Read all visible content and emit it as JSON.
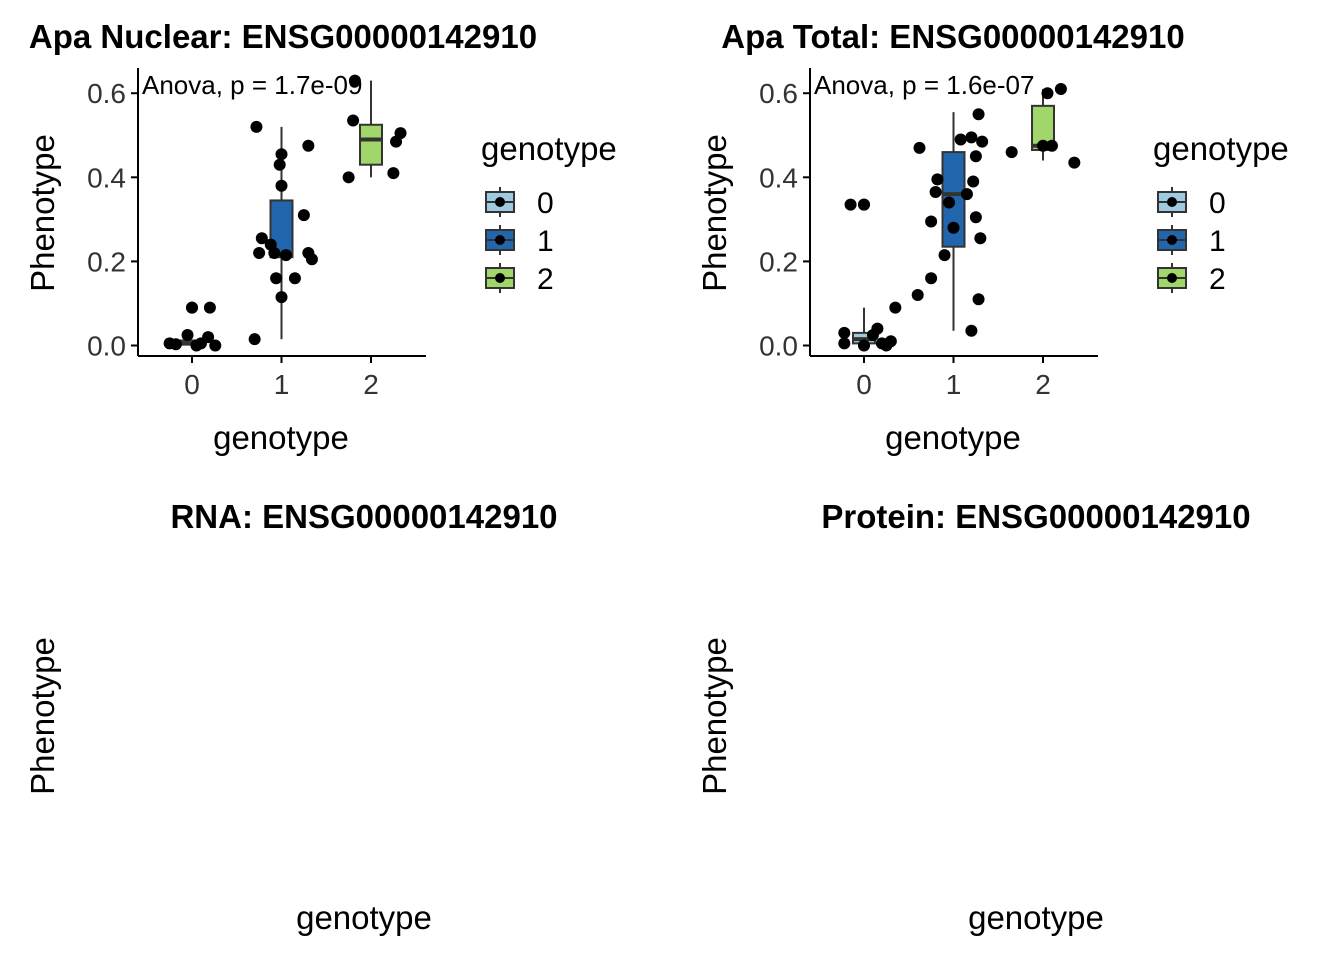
{
  "chart_data": [
    {
      "type": "box",
      "title": "Apa Nuclear: ENSG00000142910",
      "xlabel": "genotype",
      "ylabel": "Phenotype",
      "annotation": "Anova, p = 1.7e-09",
      "categories": [
        "0",
        "1",
        "2"
      ],
      "ylim": [
        -0.025,
        0.66
      ],
      "yticks": [
        0.0,
        0.2,
        0.4,
        0.6
      ],
      "ytick_labels": [
        "0.0",
        "0.2",
        "0.4",
        "0.6"
      ],
      "legend": {
        "title": "genotype",
        "entries": [
          "0",
          "1",
          "2"
        ],
        "position": "right"
      },
      "boxes": [
        {
          "category": "0",
          "q1": 0.002,
          "median": 0.005,
          "q3": 0.012,
          "whisker_low": 0.0,
          "whisker_high": 0.012,
          "outliers": [
            0.09
          ],
          "color": "#9ecae1"
        },
        {
          "category": "1",
          "q1": 0.21,
          "median": 0.215,
          "q3": 0.345,
          "whisker_low": 0.015,
          "whisker_high": 0.52,
          "outliers": [],
          "color": "#2166ac"
        },
        {
          "category": "2",
          "q1": 0.43,
          "median": 0.49,
          "q3": 0.525,
          "whisker_low": 0.4,
          "whisker_high": 0.63,
          "outliers": [],
          "color": "#a1d76a"
        }
      ],
      "points": [
        {
          "x": -0.25,
          "y": 0.005
        },
        {
          "x": -0.18,
          "y": 0.003
        },
        {
          "x": -0.05,
          "y": 0.025
        },
        {
          "x": 0.05,
          "y": 0.0
        },
        {
          "x": 0.2,
          "y": 0.09
        },
        {
          "x": 0.18,
          "y": 0.02
        },
        {
          "x": 0.26,
          "y": 0.0
        },
        {
          "x": 0.1,
          "y": 0.005
        },
        {
          "x": 0.0,
          "y": 0.09
        },
        {
          "x": -0.28,
          "y": 0.52
        },
        {
          "x": -0.3,
          "y": 0.015
        },
        {
          "x": -0.22,
          "y": 0.255
        },
        {
          "x": -0.25,
          "y": 0.22
        },
        {
          "x": -0.12,
          "y": 0.24
        },
        {
          "x": -0.08,
          "y": 0.22
        },
        {
          "x": -0.02,
          "y": 0.43
        },
        {
          "x": 0.0,
          "y": 0.455
        },
        {
          "x": 0.0,
          "y": 0.38
        },
        {
          "x": -0.06,
          "y": 0.16
        },
        {
          "x": 0.0,
          "y": 0.115
        },
        {
          "x": 0.15,
          "y": 0.16
        },
        {
          "x": 0.25,
          "y": 0.31
        },
        {
          "x": 0.3,
          "y": 0.475
        },
        {
          "x": 0.3,
          "y": 0.22
        },
        {
          "x": 0.34,
          "y": 0.205
        },
        {
          "x": 0.05,
          "y": 0.215
        },
        {
          "x": -0.25,
          "y": 0.4
        },
        {
          "x": -0.2,
          "y": 0.535
        },
        {
          "x": -0.18,
          "y": 0.63
        },
        {
          "x": 0.25,
          "y": 0.41
        },
        {
          "x": 0.28,
          "y": 0.485
        },
        {
          "x": 0.33,
          "y": 0.505
        }
      ]
    },
    {
      "type": "box",
      "title": "Apa Total: ENSG00000142910",
      "xlabel": "genotype",
      "ylabel": "Phenotype",
      "annotation": "Anova, p = 1.6e-07",
      "categories": [
        "0",
        "1",
        "2"
      ],
      "ylim": [
        -0.025,
        0.66
      ],
      "yticks": [
        0.0,
        0.2,
        0.4,
        0.6
      ],
      "ytick_labels": [
        "0.0",
        "0.2",
        "0.4",
        "0.6"
      ],
      "legend": {
        "title": "genotype",
        "entries": [
          "0",
          "1",
          "2"
        ],
        "position": "right"
      },
      "boxes": [
        {
          "category": "0",
          "q1": 0.005,
          "median": 0.015,
          "q3": 0.03,
          "whisker_low": 0.0,
          "whisker_high": 0.09,
          "outliers": [
            0.335
          ],
          "color": "#9ecae1"
        },
        {
          "category": "1",
          "q1": 0.235,
          "median": 0.36,
          "q3": 0.46,
          "whisker_low": 0.035,
          "whisker_high": 0.555,
          "outliers": [],
          "color": "#2166ac"
        },
        {
          "category": "2",
          "q1": 0.465,
          "median": 0.475,
          "q3": 0.57,
          "whisker_low": 0.44,
          "whisker_high": 0.61,
          "outliers": [],
          "color": "#a1d76a"
        }
      ],
      "points": [
        {
          "x": -0.22,
          "y": 0.03
        },
        {
          "x": -0.22,
          "y": 0.005
        },
        {
          "x": -0.15,
          "y": 0.335
        },
        {
          "x": 0.0,
          "y": 0.335
        },
        {
          "x": 0.0,
          "y": 0.0
        },
        {
          "x": 0.1,
          "y": 0.025
        },
        {
          "x": 0.15,
          "y": 0.04
        },
        {
          "x": 0.2,
          "y": 0.005
        },
        {
          "x": 0.25,
          "y": 0.0
        },
        {
          "x": 0.3,
          "y": 0.01
        },
        {
          "x": 0.35,
          "y": 0.09
        },
        {
          "x": -0.4,
          "y": 0.12
        },
        {
          "x": -0.25,
          "y": 0.16
        },
        {
          "x": -0.38,
          "y": 0.47
        },
        {
          "x": -0.2,
          "y": 0.365
        },
        {
          "x": -0.18,
          "y": 0.395
        },
        {
          "x": -0.25,
          "y": 0.295
        },
        {
          "x": -0.1,
          "y": 0.215
        },
        {
          "x": -0.05,
          "y": 0.34
        },
        {
          "x": 0.0,
          "y": 0.28
        },
        {
          "x": 0.08,
          "y": 0.49
        },
        {
          "x": 0.15,
          "y": 0.36
        },
        {
          "x": 0.2,
          "y": 0.495
        },
        {
          "x": 0.22,
          "y": 0.39
        },
        {
          "x": 0.25,
          "y": 0.45
        },
        {
          "x": 0.28,
          "y": 0.55
        },
        {
          "x": 0.32,
          "y": 0.485
        },
        {
          "x": 0.3,
          "y": 0.255
        },
        {
          "x": 0.28,
          "y": 0.11
        },
        {
          "x": 0.2,
          "y": 0.035
        },
        {
          "x": 0.25,
          "y": 0.305
        },
        {
          "x": -0.35,
          "y": 0.46
        },
        {
          "x": 0.0,
          "y": 0.475
        },
        {
          "x": 0.1,
          "y": 0.475
        },
        {
          "x": 0.2,
          "y": 0.61
        },
        {
          "x": 0.35,
          "y": 0.435
        },
        {
          "x": 0.05,
          "y": 0.6
        }
      ]
    },
    {
      "type": "box",
      "title": "RNA: ENSG00000142910",
      "xlabel": "genotype",
      "ylabel": "Phenotype"
    },
    {
      "type": "box",
      "title": "Protein: ENSG00000142910",
      "xlabel": "genotype",
      "ylabel": "Phenotype"
    }
  ]
}
